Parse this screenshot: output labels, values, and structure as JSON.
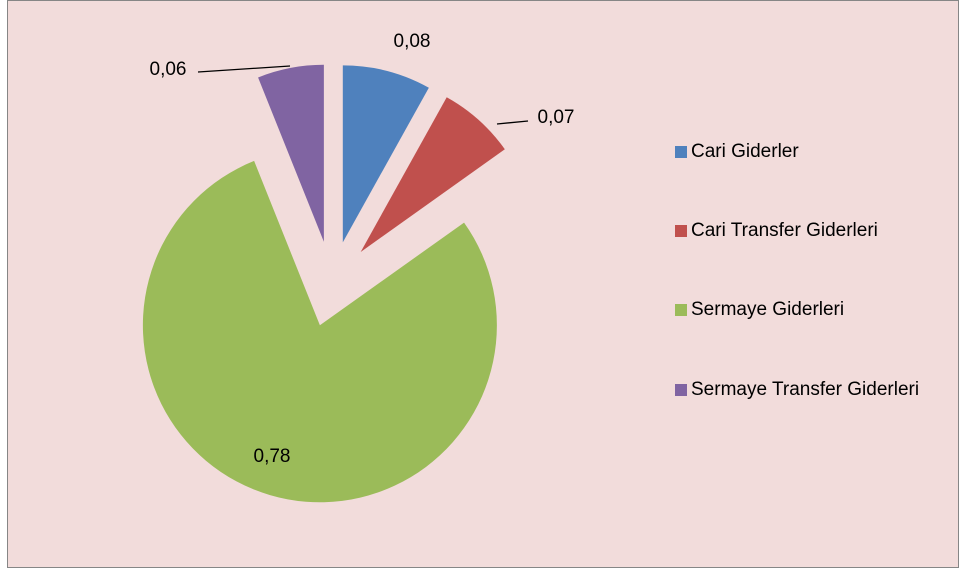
{
  "chart_data": {
    "type": "pie",
    "categories": [
      "Cari Giderler",
      "Cari Transfer Giderleri",
      "Sermaye Giderleri",
      "Sermaye Transfer Giderleri"
    ],
    "values": [
      0.08,
      0.07,
      0.78,
      0.06
    ],
    "value_labels": [
      "0,08",
      "0,07",
      "0,78",
      "0,06"
    ],
    "colors": [
      "#4f81bd",
      "#c0504d",
      "#9bbb59",
      "#8064a2"
    ],
    "legend": "right"
  }
}
